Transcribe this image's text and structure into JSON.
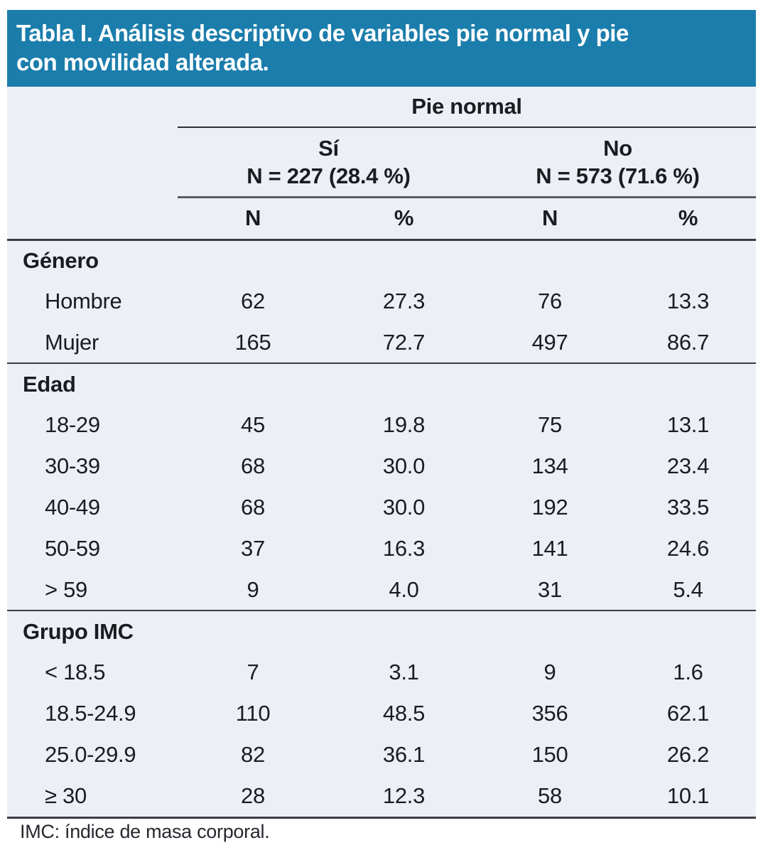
{
  "title": {
    "full": "Tabla I. Análisis descriptivo de variables pie normal y pie con movilidad alterada.",
    "line1": "Tabla I. Análisis descriptivo de variables pie normal y pie",
    "line2": "con movilidad alterada."
  },
  "colors": {
    "header_bg": "#1b7dac",
    "table_bg": "#ecf0f6",
    "title_text": "#ffffff",
    "body_text": "#1a1c20"
  },
  "header": {
    "group_label": "Pie normal",
    "subgroups": [
      {
        "label": "Sí",
        "n_label": "N = 227 (28.4 %)"
      },
      {
        "label": "No",
        "n_label": "N = 573 (71.6 %)"
      }
    ],
    "columns": [
      "N",
      "%",
      "N",
      "%"
    ]
  },
  "sections": [
    {
      "heading": "Género",
      "rows": [
        {
          "label": "Hombre",
          "values": [
            "62",
            "27.3",
            "76",
            "13.3"
          ]
        },
        {
          "label": "Mujer",
          "values": [
            "165",
            "72.7",
            "497",
            "86.7"
          ]
        }
      ]
    },
    {
      "heading": "Edad",
      "rows": [
        {
          "label": "18-29",
          "values": [
            "45",
            "19.8",
            "75",
            "13.1"
          ]
        },
        {
          "label": "30-39",
          "values": [
            "68",
            "30.0",
            "134",
            "23.4"
          ]
        },
        {
          "label": "40-49",
          "values": [
            "68",
            "30.0",
            "192",
            "33.5"
          ]
        },
        {
          "label": "50-59",
          "values": [
            "37",
            "16.3",
            "141",
            "24.6"
          ]
        },
        {
          "label": "> 59",
          "values": [
            "9",
            "4.0",
            "31",
            "5.4"
          ]
        }
      ]
    },
    {
      "heading": "Grupo IMC",
      "rows": [
        {
          "label": "< 18.5",
          "values": [
            "7",
            "3.1",
            "9",
            "1.6"
          ]
        },
        {
          "label": "18.5-24.9",
          "values": [
            "110",
            "48.5",
            "356",
            "62.1"
          ]
        },
        {
          "label": "25.0-29.9",
          "values": [
            "82",
            "36.1",
            "150",
            "26.2"
          ]
        },
        {
          "label": "≥ 30",
          "values": [
            "28",
            "12.3",
            "58",
            "10.1"
          ]
        }
      ]
    }
  ],
  "footnote": "IMC: índice de masa corporal."
}
